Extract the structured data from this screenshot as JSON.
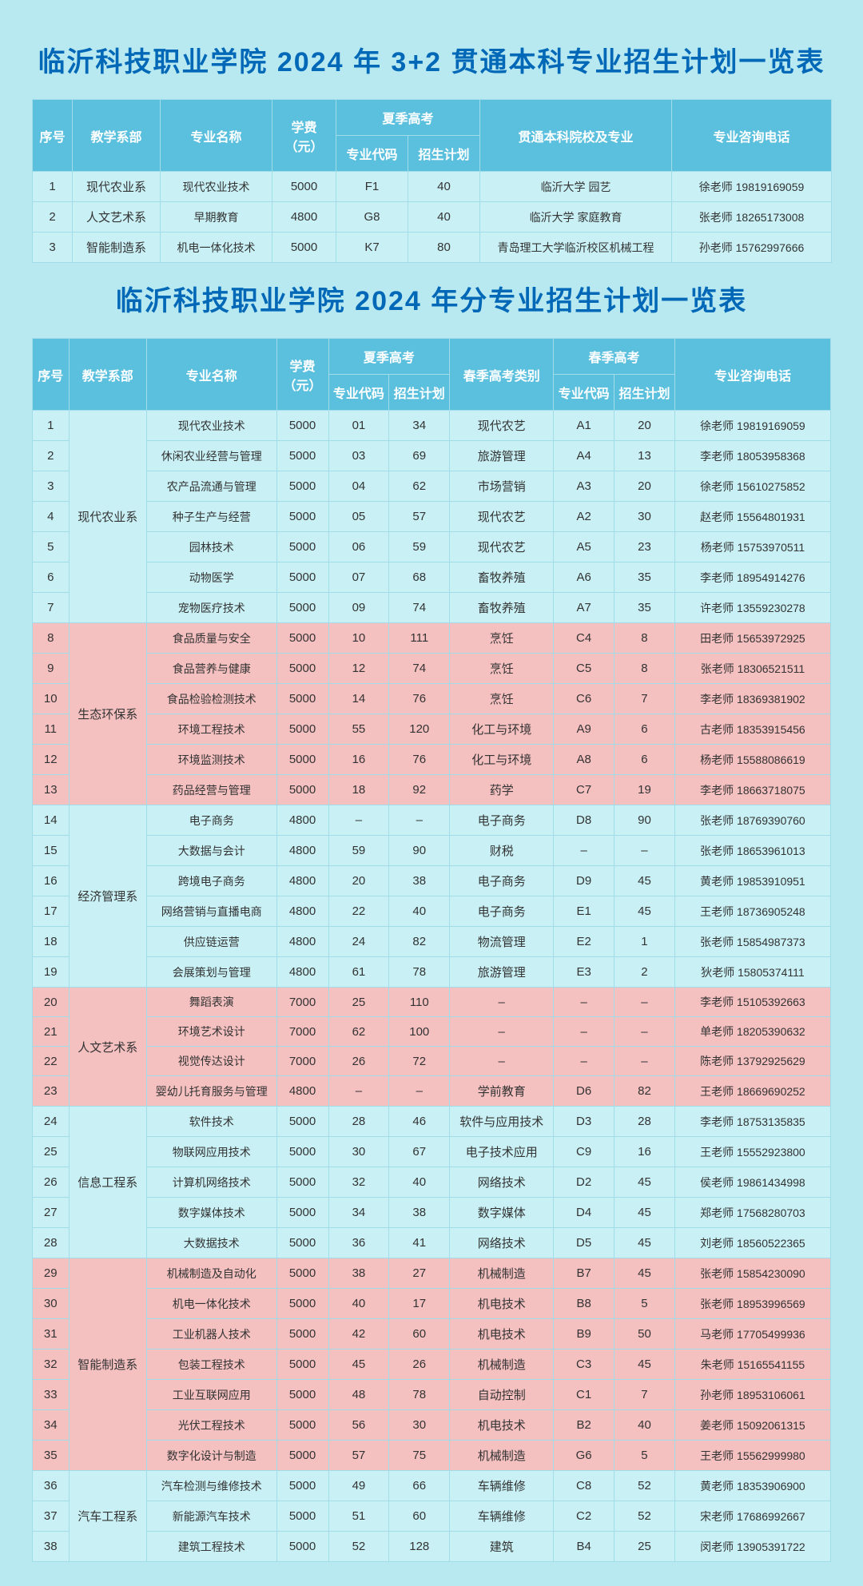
{
  "colors": {
    "page_bg": "#b8e8f0",
    "title_color": "#0068b7",
    "header_bg": "#5bc0de",
    "row_cyan": "#c8f0f5",
    "row_pink": "#f5c0c0",
    "border": "#a0dde8"
  },
  "table1": {
    "title": "临沂科技职业学院 2024 年 3+2 贯通本科专业招生计划一览表",
    "headers": {
      "idx": "序号",
      "dept": "教学系部",
      "major": "专业名称",
      "fee": "学费（元）",
      "summer": "夏季高考",
      "code": "专业代码",
      "plan": "招生计划",
      "target": "贯通本科院校及专业",
      "phone": "专业咨询电话"
    },
    "rows": [
      {
        "idx": "1",
        "dept": "现代农业系",
        "major": "现代农业技术",
        "fee": "5000",
        "code": "F1",
        "plan": "40",
        "target": "临沂大学 园艺",
        "phone": "徐老师 19819169059"
      },
      {
        "idx": "2",
        "dept": "人文艺术系",
        "major": "早期教育",
        "fee": "4800",
        "code": "G8",
        "plan": "40",
        "target": "临沂大学 家庭教育",
        "phone": "张老师 18265173008"
      },
      {
        "idx": "3",
        "dept": "智能制造系",
        "major": "机电一体化技术",
        "fee": "5000",
        "code": "K7",
        "plan": "80",
        "target": "青岛理工大学临沂校区机械工程",
        "phone": "孙老师 15762997666"
      }
    ]
  },
  "table2": {
    "title": "临沂科技职业学院 2024 年分专业招生计划一览表",
    "headers": {
      "idx": "序号",
      "dept": "教学系部",
      "major": "专业名称",
      "fee": "学费（元）",
      "summer": "夏季高考",
      "scode": "专业代码",
      "splan": "招生计划",
      "spring_cat": "春季高考类别",
      "spring": "春季高考",
      "pcode": "专业代码",
      "pplan": "招生计划",
      "phone": "专业咨询电话"
    },
    "groups": [
      {
        "dept": "现代农业系",
        "color": "cyan",
        "rows": [
          {
            "idx": "1",
            "major": "现代农业技术",
            "fee": "5000",
            "scode": "01",
            "splan": "34",
            "cat": "现代农艺",
            "pcode": "A1",
            "pplan": "20",
            "phone": "徐老师 19819169059"
          },
          {
            "idx": "2",
            "major": "休闲农业经营与管理",
            "fee": "5000",
            "scode": "03",
            "splan": "69",
            "cat": "旅游管理",
            "pcode": "A4",
            "pplan": "13",
            "phone": "李老师 18053958368"
          },
          {
            "idx": "3",
            "major": "农产品流通与管理",
            "fee": "5000",
            "scode": "04",
            "splan": "62",
            "cat": "市场营销",
            "pcode": "A3",
            "pplan": "20",
            "phone": "徐老师 15610275852"
          },
          {
            "idx": "4",
            "major": "种子生产与经营",
            "fee": "5000",
            "scode": "05",
            "splan": "57",
            "cat": "现代农艺",
            "pcode": "A2",
            "pplan": "30",
            "phone": "赵老师 15564801931"
          },
          {
            "idx": "5",
            "major": "园林技术",
            "fee": "5000",
            "scode": "06",
            "splan": "59",
            "cat": "现代农艺",
            "pcode": "A5",
            "pplan": "23",
            "phone": "杨老师 15753970511"
          },
          {
            "idx": "6",
            "major": "动物医学",
            "fee": "5000",
            "scode": "07",
            "splan": "68",
            "cat": "畜牧养殖",
            "pcode": "A6",
            "pplan": "35",
            "phone": "李老师 18954914276"
          },
          {
            "idx": "7",
            "major": "宠物医疗技术",
            "fee": "5000",
            "scode": "09",
            "splan": "74",
            "cat": "畜牧养殖",
            "pcode": "A7",
            "pplan": "35",
            "phone": "许老师 13559230278"
          }
        ]
      },
      {
        "dept": "生态环保系",
        "color": "pink",
        "rows": [
          {
            "idx": "8",
            "major": "食品质量与安全",
            "fee": "5000",
            "scode": "10",
            "splan": "111",
            "cat": "烹饪",
            "pcode": "C4",
            "pplan": "8",
            "phone": "田老师 15653972925"
          },
          {
            "idx": "9",
            "major": "食品营养与健康",
            "fee": "5000",
            "scode": "12",
            "splan": "74",
            "cat": "烹饪",
            "pcode": "C5",
            "pplan": "8",
            "phone": "张老师 18306521511"
          },
          {
            "idx": "10",
            "major": "食品检验检测技术",
            "fee": "5000",
            "scode": "14",
            "splan": "76",
            "cat": "烹饪",
            "pcode": "C6",
            "pplan": "7",
            "phone": "李老师 18369381902"
          },
          {
            "idx": "11",
            "major": "环境工程技术",
            "fee": "5000",
            "scode": "55",
            "splan": "120",
            "cat": "化工与环境",
            "pcode": "A9",
            "pplan": "6",
            "phone": "古老师 18353915456"
          },
          {
            "idx": "12",
            "major": "环境监测技术",
            "fee": "5000",
            "scode": "16",
            "splan": "76",
            "cat": "化工与环境",
            "pcode": "A8",
            "pplan": "6",
            "phone": "杨老师 15588086619"
          },
          {
            "idx": "13",
            "major": "药品经营与管理",
            "fee": "5000",
            "scode": "18",
            "splan": "92",
            "cat": "药学",
            "pcode": "C7",
            "pplan": "19",
            "phone": "李老师 18663718075"
          }
        ]
      },
      {
        "dept": "经济管理系",
        "color": "cyan",
        "rows": [
          {
            "idx": "14",
            "major": "电子商务",
            "fee": "4800",
            "scode": "–",
            "splan": "–",
            "cat": "电子商务",
            "pcode": "D8",
            "pplan": "90",
            "phone": "张老师 18769390760"
          },
          {
            "idx": "15",
            "major": "大数据与会计",
            "fee": "4800",
            "scode": "59",
            "splan": "90",
            "cat": "财税",
            "pcode": "–",
            "pplan": "–",
            "phone": "张老师 18653961013"
          },
          {
            "idx": "16",
            "major": "跨境电子商务",
            "fee": "4800",
            "scode": "20",
            "splan": "38",
            "cat": "电子商务",
            "pcode": "D9",
            "pplan": "45",
            "phone": "黄老师 19853910951"
          },
          {
            "idx": "17",
            "major": "网络营销与直播电商",
            "fee": "4800",
            "scode": "22",
            "splan": "40",
            "cat": "电子商务",
            "pcode": "E1",
            "pplan": "45",
            "phone": "王老师 18736905248"
          },
          {
            "idx": "18",
            "major": "供应链运营",
            "fee": "4800",
            "scode": "24",
            "splan": "82",
            "cat": "物流管理",
            "pcode": "E2",
            "pplan": "1",
            "phone": "张老师 15854987373"
          },
          {
            "idx": "19",
            "major": "会展策划与管理",
            "fee": "4800",
            "scode": "61",
            "splan": "78",
            "cat": "旅游管理",
            "pcode": "E3",
            "pplan": "2",
            "phone": "狄老师 15805374111"
          }
        ]
      },
      {
        "dept": "人文艺术系",
        "color": "pink",
        "rows": [
          {
            "idx": "20",
            "major": "舞蹈表演",
            "fee": "7000",
            "scode": "25",
            "splan": "110",
            "cat": "–",
            "pcode": "–",
            "pplan": "–",
            "phone": "李老师 15105392663"
          },
          {
            "idx": "21",
            "major": "环境艺术设计",
            "fee": "7000",
            "scode": "62",
            "splan": "100",
            "cat": "–",
            "pcode": "–",
            "pplan": "–",
            "phone": "单老师 18205390632"
          },
          {
            "idx": "22",
            "major": "视觉传达设计",
            "fee": "7000",
            "scode": "26",
            "splan": "72",
            "cat": "–",
            "pcode": "–",
            "pplan": "–",
            "phone": "陈老师 13792925629"
          },
          {
            "idx": "23",
            "major": "婴幼儿托育服务与管理",
            "fee": "4800",
            "scode": "–",
            "splan": "–",
            "cat": "学前教育",
            "pcode": "D6",
            "pplan": "82",
            "phone": "王老师 18669690252"
          }
        ]
      },
      {
        "dept": "信息工程系",
        "color": "cyan",
        "rows": [
          {
            "idx": "24",
            "major": "软件技术",
            "fee": "5000",
            "scode": "28",
            "splan": "46",
            "cat": "软件与应用技术",
            "pcode": "D3",
            "pplan": "28",
            "phone": "李老师 18753135835"
          },
          {
            "idx": "25",
            "major": "物联网应用技术",
            "fee": "5000",
            "scode": "30",
            "splan": "67",
            "cat": "电子技术应用",
            "pcode": "C9",
            "pplan": "16",
            "phone": "王老师 15552923800"
          },
          {
            "idx": "26",
            "major": "计算机网络技术",
            "fee": "5000",
            "scode": "32",
            "splan": "40",
            "cat": "网络技术",
            "pcode": "D2",
            "pplan": "45",
            "phone": "侯老师 19861434998"
          },
          {
            "idx": "27",
            "major": "数字媒体技术",
            "fee": "5000",
            "scode": "34",
            "splan": "38",
            "cat": "数字媒体",
            "pcode": "D4",
            "pplan": "45",
            "phone": "郑老师 17568280703"
          },
          {
            "idx": "28",
            "major": "大数据技术",
            "fee": "5000",
            "scode": "36",
            "splan": "41",
            "cat": "网络技术",
            "pcode": "D5",
            "pplan": "45",
            "phone": "刘老师 18560522365"
          }
        ]
      },
      {
        "dept": "智能制造系",
        "color": "pink",
        "rows": [
          {
            "idx": "29",
            "major": "机械制造及自动化",
            "fee": "5000",
            "scode": "38",
            "splan": "27",
            "cat": "机械制造",
            "pcode": "B7",
            "pplan": "45",
            "phone": "张老师 15854230090"
          },
          {
            "idx": "30",
            "major": "机电一体化技术",
            "fee": "5000",
            "scode": "40",
            "splan": "17",
            "cat": "机电技术",
            "pcode": "B8",
            "pplan": "5",
            "phone": "张老师 18953996569"
          },
          {
            "idx": "31",
            "major": "工业机器人技术",
            "fee": "5000",
            "scode": "42",
            "splan": "60",
            "cat": "机电技术",
            "pcode": "B9",
            "pplan": "50",
            "phone": "马老师 17705499936"
          },
          {
            "idx": "32",
            "major": "包装工程技术",
            "fee": "5000",
            "scode": "45",
            "splan": "26",
            "cat": "机械制造",
            "pcode": "C3",
            "pplan": "45",
            "phone": "朱老师 15165541155"
          },
          {
            "idx": "33",
            "major": "工业互联网应用",
            "fee": "5000",
            "scode": "48",
            "splan": "78",
            "cat": "自动控制",
            "pcode": "C1",
            "pplan": "7",
            "phone": "孙老师 18953106061"
          },
          {
            "idx": "34",
            "major": "光伏工程技术",
            "fee": "5000",
            "scode": "56",
            "splan": "30",
            "cat": "机电技术",
            "pcode": "B2",
            "pplan": "40",
            "phone": "姜老师 15092061315"
          },
          {
            "idx": "35",
            "major": "数字化设计与制造",
            "fee": "5000",
            "scode": "57",
            "splan": "75",
            "cat": "机械制造",
            "pcode": "G6",
            "pplan": "5",
            "phone": "王老师 15562999980"
          }
        ]
      },
      {
        "dept": "汽车工程系",
        "color": "cyan",
        "rows": [
          {
            "idx": "36",
            "major": "汽车检测与维修技术",
            "fee": "5000",
            "scode": "49",
            "splan": "66",
            "cat": "车辆维修",
            "pcode": "C8",
            "pplan": "52",
            "phone": "黄老师 18353906900"
          },
          {
            "idx": "37",
            "major": "新能源汽车技术",
            "fee": "5000",
            "scode": "51",
            "splan": "60",
            "cat": "车辆维修",
            "pcode": "C2",
            "pplan": "52",
            "phone": "宋老师 17686992667"
          },
          {
            "idx": "38",
            "major": "建筑工程技术",
            "fee": "5000",
            "scode": "52",
            "splan": "128",
            "cat": "建筑",
            "pcode": "B4",
            "pplan": "25",
            "phone": "闵老师 13905391722"
          }
        ]
      }
    ]
  }
}
